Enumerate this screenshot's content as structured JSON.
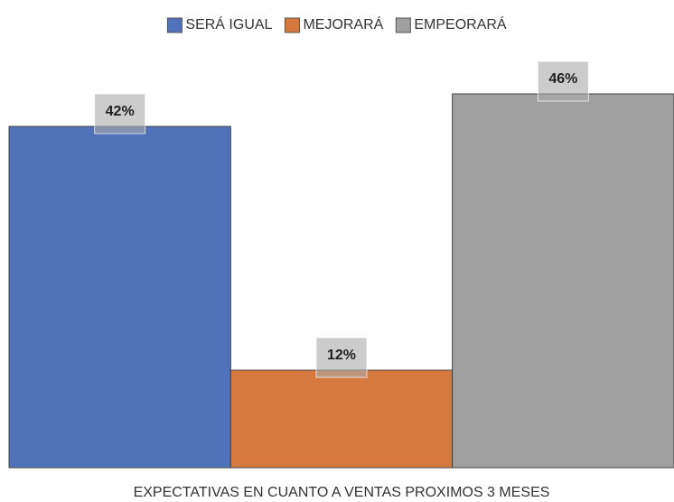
{
  "chart_data": {
    "type": "bar",
    "categories": [
      "EXPECTATIVAS EN CUANTO A VENTAS PROXIMOS 3 MESES"
    ],
    "series": [
      {
        "name": "SERÁ IGUAL",
        "color": "#4f72b8",
        "values": [
          42
        ],
        "value_labels": [
          "42%"
        ]
      },
      {
        "name": "MEJORARÁ",
        "color": "#d6793e",
        "values": [
          12
        ],
        "value_labels": [
          "12%"
        ]
      },
      {
        "name": "EMPEORARÁ",
        "color": "#a0a0a0",
        "values": [
          46
        ],
        "value_labels": [
          "46%"
        ]
      }
    ],
    "legend": "top"
  }
}
